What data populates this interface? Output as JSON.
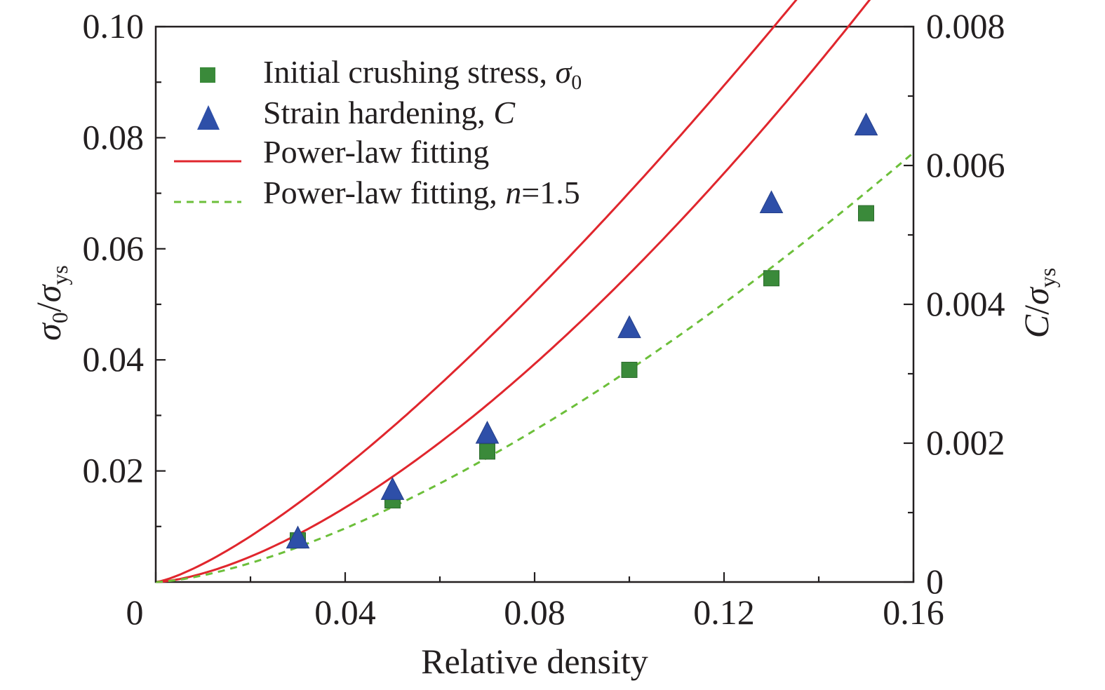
{
  "chart_data": {
    "type": "scatter",
    "xlabel": "Relative density",
    "ylabel": {
      "symbol": "σ",
      "sub": "0",
      "slash": "/",
      "symbol2": "σ",
      "sub2": "ys"
    },
    "y2label": {
      "symbol": "C",
      "slash": "/",
      "symbol2": "σ",
      "sub2": "ys"
    },
    "xlim": [
      0,
      0.16
    ],
    "ylim": [
      0,
      0.1
    ],
    "y2lim": [
      0,
      0.008
    ],
    "x_ticks": [
      {
        "value": 0,
        "label": "0"
      },
      {
        "value": 0.04,
        "label": "0.04"
      },
      {
        "value": 0.08,
        "label": "0.08"
      },
      {
        "value": 0.12,
        "label": "0.12"
      },
      {
        "value": 0.16,
        "label": "0.16"
      }
    ],
    "y_ticks": [
      {
        "value": 0.02,
        "label": "0.02"
      },
      {
        "value": 0.04,
        "label": "0.04"
      },
      {
        "value": 0.06,
        "label": "0.06"
      },
      {
        "value": 0.08,
        "label": "0.08"
      },
      {
        "value": 0.1,
        "label": "0.10"
      }
    ],
    "y2_ticks": [
      {
        "value": 0,
        "label": "0"
      },
      {
        "value": 0.002,
        "label": "0.002"
      },
      {
        "value": 0.004,
        "label": "0.004"
      },
      {
        "value": 0.006,
        "label": "0.006"
      },
      {
        "value": 0.008,
        "label": "0.008"
      }
    ],
    "grid": false,
    "legend_position": "top-left",
    "series": [
      {
        "name": "Initial crushing stress, σ0",
        "legend": {
          "text": "Initial crushing stress, ",
          "italic": "σ",
          "sub": "0"
        },
        "marker": "square",
        "color": "#3a8a3a",
        "axis": "left",
        "x": [
          0.03,
          0.05,
          0.07,
          0.1,
          0.13,
          0.15
        ],
        "y": [
          0.0075,
          0.0147,
          0.0235,
          0.0382,
          0.0547,
          0.0664
        ]
      },
      {
        "name": "Strain hardening, C",
        "legend": {
          "text": "Strain hardening, ",
          "italic": "C",
          "sub": ""
        },
        "marker": "triangle",
        "color": "#2e4fa8",
        "axis": "right",
        "x": [
          0.03,
          0.05,
          0.07,
          0.1,
          0.13,
          0.15
        ],
        "y": [
          0.00062,
          0.00132,
          0.00213,
          0.00365,
          0.00545,
          0.00657
        ]
      },
      {
        "name": "Power-law fitting",
        "legend": {
          "text": "Power-law fitting",
          "italic": "",
          "suffix": ""
        },
        "line": "solid",
        "color": "#e0262d",
        "fits": [
          {
            "axis": "left",
            "coef": 1.5,
            "exponent": 1.33
          },
          {
            "axis": "right",
            "coef": 0.1575,
            "exponent": 1.55
          }
        ]
      },
      {
        "name": "Power-law fitting, n=1.5",
        "legend": {
          "text": "Power-law fitting, ",
          "italic": "n",
          "suffix": "=1.5"
        },
        "line": "dashed",
        "color": "#6cbf3a",
        "fits": [
          {
            "axis": "left",
            "coef": 1.208,
            "exponent": 1.5
          }
        ]
      }
    ]
  }
}
